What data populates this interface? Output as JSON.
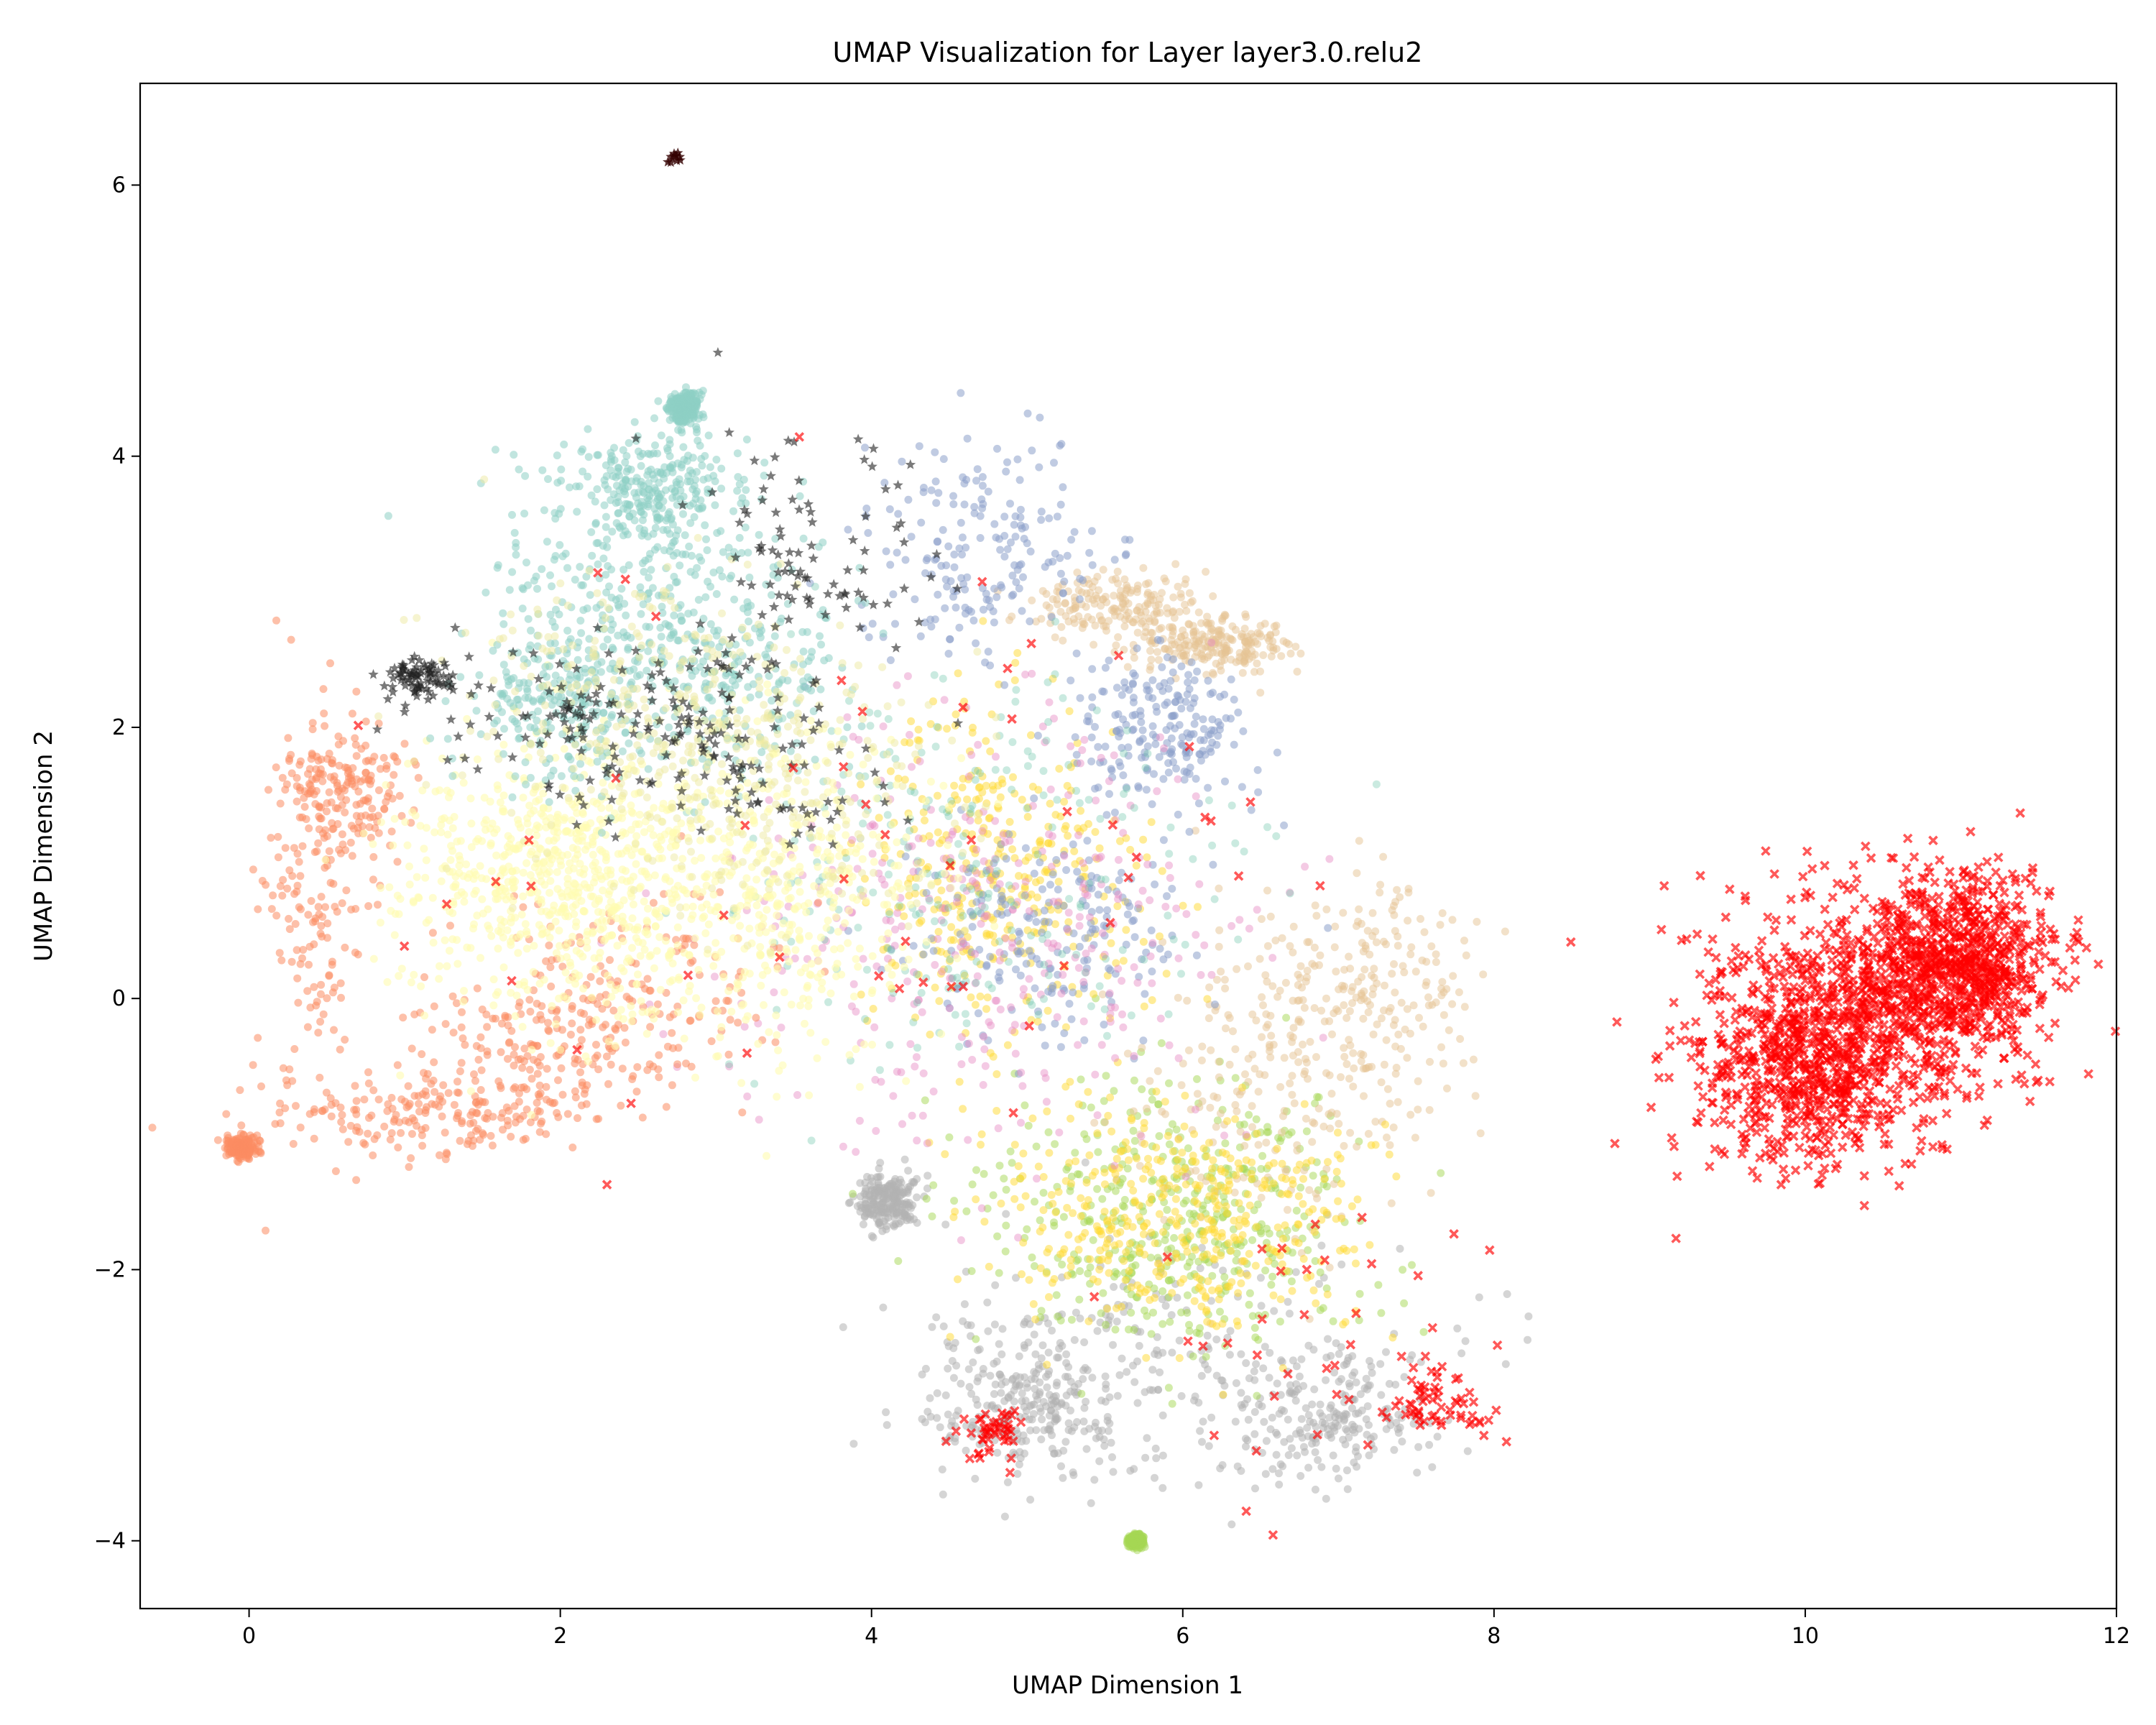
{
  "chart_data": {
    "type": "scatter",
    "title": "UMAP Visualization for Layer layer3.0.relu2",
    "xlabel": "UMAP Dimension 1",
    "ylabel": "UMAP Dimension 2",
    "xlim": [
      -0.7,
      12.0
    ],
    "ylim": [
      -4.5,
      6.75
    ],
    "xticks": [
      0,
      2,
      4,
      6,
      8,
      10,
      12
    ],
    "yticks": [
      -4,
      -2,
      0,
      2,
      4,
      6
    ],
    "grid": false,
    "legend": "none",
    "seed": 7,
    "clusters": [
      {
        "color": "#b3b3b3",
        "marker": "circle",
        "n": 900,
        "alpha": 0.55,
        "blobs": [
          [
            5.8,
            -2.6,
            0.9,
            0.45
          ],
          [
            5.0,
            -3.0,
            0.3,
            0.25
          ],
          [
            6.9,
            -3.1,
            0.3,
            0.25
          ],
          [
            4.1,
            -1.5,
            0.1,
            0.1
          ]
        ]
      },
      {
        "color": "#a6d854",
        "marker": "circle",
        "n": 900,
        "alpha": 0.5,
        "blobs": [
          [
            6.0,
            -1.6,
            0.6,
            0.5
          ],
          [
            5.7,
            -4.0,
            0.02,
            0.02
          ]
        ]
      },
      {
        "color": "#e5c494",
        "marker": "circle",
        "n": 800,
        "alpha": 0.5,
        "blobs": [
          [
            7.2,
            0.0,
            0.35,
            0.45
          ],
          [
            6.5,
            -0.6,
            0.45,
            0.6
          ],
          [
            5.6,
            2.9,
            0.3,
            0.12
          ],
          [
            6.2,
            2.6,
            0.25,
            0.1
          ]
        ]
      },
      {
        "color": "#ffd92f",
        "marker": "circle",
        "n": 800,
        "alpha": 0.5,
        "blobs": [
          [
            4.8,
            0.9,
            0.45,
            0.65
          ],
          [
            6.0,
            -1.6,
            0.6,
            0.4
          ]
        ]
      },
      {
        "color": "#8da0cb",
        "marker": "circle",
        "n": 600,
        "alpha": 0.55,
        "blobs": [
          [
            5.9,
            2.0,
            0.3,
            0.3
          ],
          [
            4.7,
            3.3,
            0.4,
            0.4
          ],
          [
            5.2,
            0.5,
            0.5,
            0.4
          ]
        ]
      },
      {
        "color": "#e78ac3",
        "marker": "circle",
        "n": 350,
        "alpha": 0.45,
        "blobs": [
          [
            4.8,
            0.5,
            0.8,
            0.8
          ]
        ]
      },
      {
        "color": "#66c2a5",
        "marker": "circle",
        "n": 250,
        "alpha": 0.35,
        "blobs": [
          [
            4.5,
            1.0,
            0.8,
            0.8
          ]
        ]
      },
      {
        "color": "#fc8d62",
        "marker": "circle",
        "n": 950,
        "alpha": 0.55,
        "blobs": [
          [
            1.2,
            -0.9,
            0.5,
            0.15
          ],
          [
            0.4,
            0.5,
            0.2,
            0.7
          ],
          [
            0.6,
            1.5,
            0.2,
            0.25
          ],
          [
            2.5,
            0.0,
            0.5,
            0.4
          ],
          [
            1.8,
            -0.4,
            0.4,
            0.3
          ],
          [
            -0.05,
            -1.1,
            0.05,
            0.04
          ]
        ]
      },
      {
        "color": "#fffcb0",
        "marker": "circle",
        "n": 1200,
        "alpha": 0.6,
        "blobs": [
          [
            1.9,
            0.9,
            0.5,
            0.5
          ],
          [
            3.2,
            0.8,
            0.6,
            0.6
          ]
        ]
      },
      {
        "color": "#8ecfc4",
        "marker": "circle",
        "n": 1200,
        "alpha": 0.55,
        "blobs": [
          [
            2.4,
            3.1,
            0.5,
            0.45
          ],
          [
            2.0,
            2.2,
            0.3,
            0.3
          ],
          [
            2.8,
            4.35,
            0.05,
            0.06
          ],
          [
            3.1,
            2.4,
            0.4,
            0.4
          ],
          [
            2.6,
            3.8,
            0.3,
            0.2
          ]
        ]
      },
      {
        "color": "#eee9a2",
        "marker": "circle",
        "n": 500,
        "alpha": 0.5,
        "blobs": [
          [
            2.6,
            2.2,
            0.6,
            0.5
          ],
          [
            3.3,
            1.5,
            0.6,
            0.5
          ]
        ]
      },
      {
        "color": "#222222",
        "marker": "star",
        "n": 380,
        "alpha": 0.6,
        "blobs": [
          [
            3.6,
            3.3,
            0.4,
            0.45
          ],
          [
            1.1,
            2.35,
            0.12,
            0.08
          ],
          [
            2.2,
            2.1,
            0.5,
            0.25
          ],
          [
            3.0,
            1.7,
            0.5,
            0.3
          ]
        ]
      },
      {
        "color": "#330000",
        "marker": "star",
        "n": 10,
        "alpha": 0.8,
        "blobs": [
          [
            2.74,
            6.2,
            0.02,
            0.02
          ]
        ]
      },
      {
        "color": "#ff0000",
        "marker": "x",
        "n": 1900,
        "alpha": 0.65,
        "blobs": [
          [
            10.5,
            0.0,
            0.55,
            0.45
          ],
          [
            10.0,
            -0.5,
            0.4,
            0.4
          ],
          [
            11.0,
            0.3,
            0.3,
            0.3
          ]
        ]
      },
      {
        "color": "#ff0000",
        "marker": "x",
        "n": 200,
        "alpha": 0.65,
        "blobs": [
          [
            4.0,
            1.0,
            2.0,
            1.2
          ],
          [
            7.0,
            -2.5,
            0.6,
            0.6
          ],
          [
            4.8,
            -3.2,
            0.1,
            0.1
          ],
          [
            7.6,
            -3.0,
            0.15,
            0.12
          ]
        ]
      }
    ]
  }
}
